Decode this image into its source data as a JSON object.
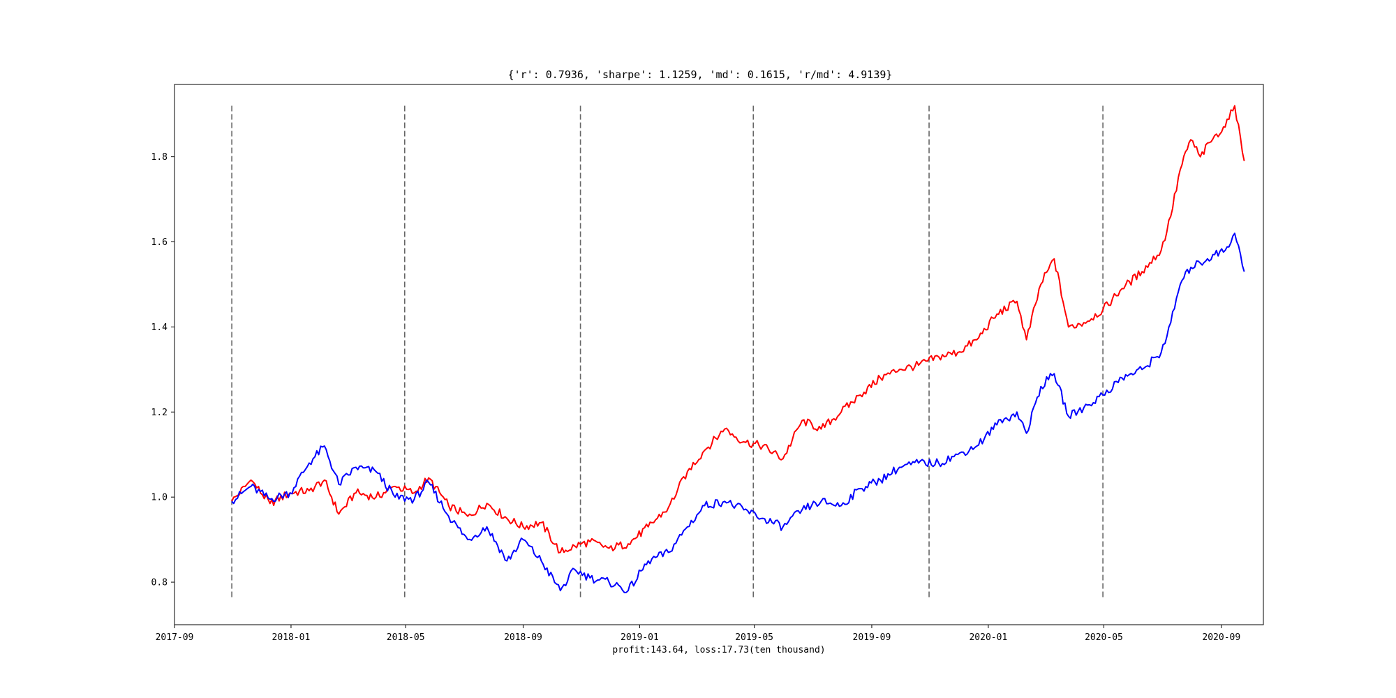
{
  "chart_data": {
    "type": "line",
    "title": "{'r': 0.7936, 'sharpe': 1.1259, 'md': 0.1615, 'r/md': 4.9139}",
    "xlabel": "profit:143.64, loss:17.73(ten thousand)",
    "ylabel": "",
    "x_ticks": [
      "2017-09",
      "2018-01",
      "2018-05",
      "2018-09",
      "2019-01",
      "2019-05",
      "2019-09",
      "2020-01",
      "2020-05",
      "2020-09"
    ],
    "y_ticks": [
      "0.8",
      "1.0",
      "1.2",
      "1.4",
      "1.6",
      "1.8"
    ],
    "xlim": [
      "2017-09-01",
      "2020-10-15"
    ],
    "ylim": [
      0.7,
      1.97
    ],
    "grid": false,
    "legend": "none",
    "vertical_markers": {
      "dates": [
        "2017-10-31",
        "2018-04-30",
        "2018-10-31",
        "2019-04-30",
        "2019-10-31",
        "2020-04-30"
      ],
      "ymin": 0.76,
      "ymax": 1.92,
      "color": "#666666",
      "style": "dashed"
    },
    "series": [
      {
        "color": "#ff0000",
        "x": [
          "2017-10-31",
          "2017-11-20",
          "2017-12-10",
          "2017-12-31",
          "2018-01-20",
          "2018-02-05",
          "2018-02-20",
          "2018-03-10",
          "2018-03-31",
          "2018-04-20",
          "2018-05-10",
          "2018-05-25",
          "2018-06-15",
          "2018-07-05",
          "2018-07-25",
          "2018-08-15",
          "2018-09-01",
          "2018-09-20",
          "2018-10-10",
          "2018-10-25",
          "2018-11-10",
          "2018-11-30",
          "2018-12-20",
          "2019-01-10",
          "2019-01-31",
          "2019-02-20",
          "2019-03-10",
          "2019-03-31",
          "2019-04-20",
          "2019-05-10",
          "2019-05-31",
          "2019-06-20",
          "2019-07-10",
          "2019-07-31",
          "2019-08-20",
          "2019-09-10",
          "2019-09-30",
          "2019-10-20",
          "2019-11-10",
          "2019-11-30",
          "2019-12-20",
          "2020-01-10",
          "2020-01-31",
          "2020-02-10",
          "2020-02-25",
          "2020-03-10",
          "2020-03-25",
          "2020-04-10",
          "2020-04-30",
          "2020-05-20",
          "2020-06-10",
          "2020-06-30",
          "2020-07-10",
          "2020-07-20",
          "2020-07-31",
          "2020-08-10",
          "2020-08-25",
          "2020-09-05",
          "2020-09-15",
          "2020-09-25"
        ],
        "y": [
          0.99,
          1.04,
          0.985,
          1.01,
          1.015,
          1.04,
          0.96,
          1.01,
          1.0,
          1.025,
          1.01,
          1.045,
          0.98,
          0.955,
          0.985,
          0.95,
          0.93,
          0.94,
          0.87,
          0.885,
          0.895,
          0.88,
          0.89,
          0.93,
          0.975,
          1.06,
          1.11,
          1.16,
          1.13,
          1.12,
          1.09,
          1.18,
          1.16,
          1.2,
          1.24,
          1.28,
          1.3,
          1.31,
          1.33,
          1.34,
          1.37,
          1.43,
          1.46,
          1.37,
          1.5,
          1.56,
          1.4,
          1.41,
          1.44,
          1.49,
          1.53,
          1.58,
          1.66,
          1.77,
          1.84,
          1.8,
          1.85,
          1.87,
          1.92,
          1.79
        ]
      },
      {
        "color": "#0000ff",
        "x": [
          "2017-10-31",
          "2017-11-20",
          "2017-12-10",
          "2017-12-31",
          "2018-01-20",
          "2018-02-05",
          "2018-02-20",
          "2018-03-10",
          "2018-03-31",
          "2018-04-20",
          "2018-05-10",
          "2018-05-25",
          "2018-06-15",
          "2018-07-05",
          "2018-07-25",
          "2018-08-15",
          "2018-09-01",
          "2018-09-20",
          "2018-10-10",
          "2018-10-25",
          "2018-11-10",
          "2018-11-30",
          "2018-12-20",
          "2019-01-10",
          "2019-01-31",
          "2019-02-20",
          "2019-03-10",
          "2019-03-31",
          "2019-04-20",
          "2019-05-10",
          "2019-05-31",
          "2019-06-20",
          "2019-07-10",
          "2019-07-31",
          "2019-08-20",
          "2019-09-10",
          "2019-09-30",
          "2019-10-20",
          "2019-11-10",
          "2019-11-30",
          "2019-12-20",
          "2020-01-10",
          "2020-01-31",
          "2020-02-10",
          "2020-02-25",
          "2020-03-10",
          "2020-03-25",
          "2020-04-10",
          "2020-04-30",
          "2020-05-20",
          "2020-06-10",
          "2020-06-30",
          "2020-07-10",
          "2020-07-20",
          "2020-07-31",
          "2020-08-10",
          "2020-08-25",
          "2020-09-05",
          "2020-09-15",
          "2020-09-25"
        ],
        "y": [
          0.99,
          1.025,
          0.995,
          1.01,
          1.08,
          1.12,
          1.03,
          1.07,
          1.06,
          1.0,
          0.995,
          1.035,
          0.955,
          0.9,
          0.93,
          0.85,
          0.9,
          0.85,
          0.78,
          0.83,
          0.81,
          0.8,
          0.78,
          0.85,
          0.87,
          0.93,
          0.98,
          0.99,
          0.97,
          0.95,
          0.93,
          0.97,
          0.99,
          0.98,
          1.02,
          1.04,
          1.07,
          1.08,
          1.08,
          1.1,
          1.12,
          1.17,
          1.2,
          1.15,
          1.26,
          1.29,
          1.19,
          1.21,
          1.24,
          1.28,
          1.3,
          1.34,
          1.41,
          1.5,
          1.54,
          1.55,
          1.57,
          1.58,
          1.62,
          1.53
        ]
      }
    ]
  }
}
